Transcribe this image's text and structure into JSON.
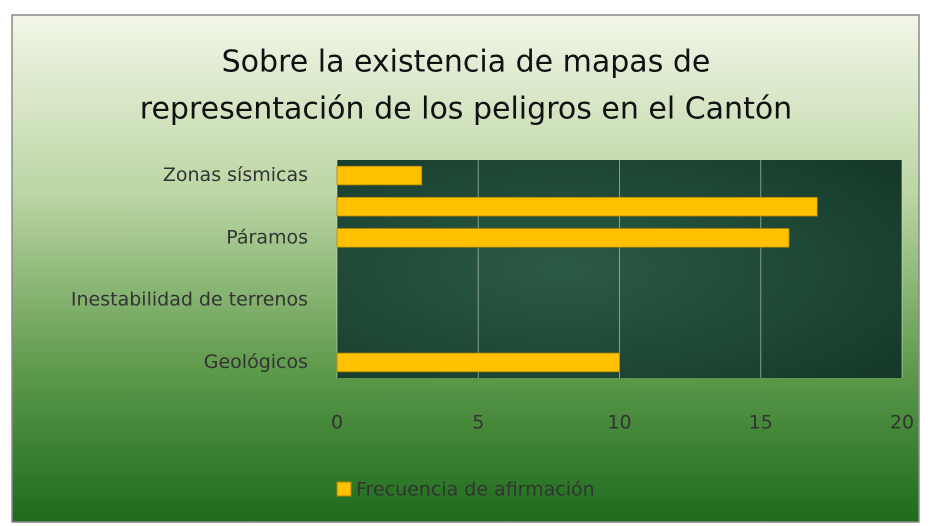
{
  "chart_data": {
    "type": "hbar",
    "title": [
      "Sobre la existencia de mapas de",
      "representación de los peligros en el Cantón"
    ],
    "categories": [
      "Zonas sísmicas",
      null,
      "Páramos",
      null,
      "Inestabilidad de terrenos",
      null,
      "Geológicos"
    ],
    "series": [
      {
        "name": "Frecuencia de afirmación",
        "color": "#ffc000",
        "values": [
          3,
          17,
          16,
          0,
          0,
          0,
          10
        ]
      }
    ],
    "xlim": [
      0,
      20
    ],
    "xticks": [
      0,
      5,
      10,
      15,
      20
    ],
    "grid": true,
    "legend": "bottom"
  }
}
